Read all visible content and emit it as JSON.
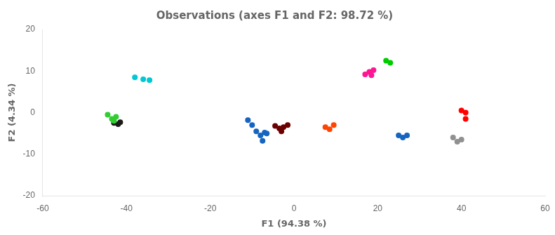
{
  "chart_data": {
    "type": "scatter",
    "title": "Observations (axes F1 and F2: 98.72 %)",
    "xlabel": "F1 (94.38 %)",
    "ylabel": "F2 (4.34 %)",
    "xlim": [
      -60,
      60
    ],
    "ylim": [
      -20,
      20
    ],
    "xticks": [
      -60,
      -40,
      -20,
      0,
      20,
      40,
      60
    ],
    "yticks": [
      -20,
      -10,
      0,
      10,
      20
    ],
    "grid": false,
    "series": [
      {
        "color": "#00c8d4",
        "x": [
          -38,
          -36,
          -34.5
        ],
        "values": [
          8.5,
          8.0,
          7.8
        ]
      },
      {
        "color": "#32cd32",
        "x": [
          -44.5,
          -43.5,
          -43,
          -42.5
        ],
        "values": [
          -0.5,
          -1.5,
          -2.0,
          -1.0
        ]
      },
      {
        "color": "#1a1a1a",
        "x": [
          -43,
          -42,
          -41.5
        ],
        "values": [
          -2.5,
          -2.8,
          -2.3
        ]
      },
      {
        "color": "#1565c0",
        "x": [
          -11,
          -10,
          -9,
          -8,
          -7.5,
          -7,
          -6.5
        ],
        "values": [
          -1.8,
          -3.0,
          -4.5,
          -5.5,
          -6.8,
          -4.8,
          -5.0
        ]
      },
      {
        "color": "#6b0000",
        "x": [
          -4.5,
          -3.5,
          -2.5,
          -1.5,
          -3
        ],
        "values": [
          -3.2,
          -3.8,
          -3.5,
          -3.0,
          -4.5
        ]
      },
      {
        "color": "#ff4500",
        "x": [
          7.5,
          8.5,
          9.5
        ],
        "values": [
          -3.5,
          -4.0,
          -3.0
        ]
      },
      {
        "color": "#ff1493",
        "x": [
          17,
          18,
          18.5,
          19
        ],
        "values": [
          9.2,
          9.8,
          9.0,
          10.2
        ]
      },
      {
        "color": "#00cc00",
        "x": [
          22,
          23
        ],
        "values": [
          12.5,
          12.0
        ]
      },
      {
        "color": "#1565c0",
        "x": [
          25,
          26,
          27
        ],
        "values": [
          -5.5,
          -6.0,
          -5.5
        ]
      },
      {
        "color": "#ff0000",
        "x": [
          40,
          41,
          41
        ],
        "values": [
          0.5,
          0.0,
          -1.5
        ]
      },
      {
        "color": "#909090",
        "x": [
          38,
          39,
          40
        ],
        "values": [
          -6.0,
          -7.0,
          -6.5
        ]
      }
    ]
  }
}
